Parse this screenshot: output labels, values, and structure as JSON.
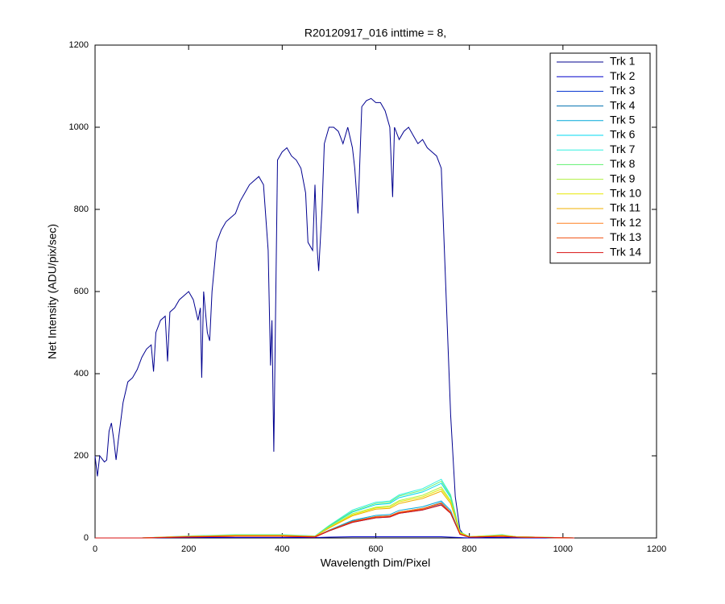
{
  "chart_data": {
    "type": "line",
    "title": "R20120917_016 inttime = 8,",
    "x_label": "Wavelength Dim/Pixel",
    "y_label": "Net Intensity (ADU/pix/sec)",
    "xlim": [
      0,
      1200
    ],
    "xticks": [
      0,
      200,
      400,
      600,
      800,
      1000,
      1200
    ],
    "ylim": [
      0,
      1200
    ],
    "yticks": [
      0,
      200,
      400,
      600,
      800,
      1000,
      1200
    ],
    "legend": "upper-right",
    "x": [
      0,
      100,
      200,
      300,
      400,
      470,
      500,
      550,
      600,
      630,
      650,
      700,
      740,
      760,
      780,
      800,
      870,
      900,
      1024
    ],
    "series": [
      {
        "name": "Trk 1",
        "color": "#00008f",
        "x": [
          0,
          5,
          10,
          20,
          25,
          30,
          35,
          40,
          45,
          50,
          60,
          70,
          80,
          90,
          100,
          110,
          120,
          125,
          130,
          140,
          150,
          155,
          160,
          170,
          180,
          190,
          200,
          210,
          220,
          225,
          228,
          232,
          240,
          245,
          250,
          260,
          270,
          280,
          290,
          300,
          310,
          320,
          330,
          340,
          350,
          360,
          370,
          375,
          378,
          382,
          390,
          400,
          410,
          420,
          430,
          440,
          450,
          455,
          465,
          470,
          475,
          478,
          485,
          490,
          500,
          510,
          520,
          530,
          540,
          550,
          555,
          562,
          570,
          580,
          590,
          600,
          610,
          620,
          630,
          636,
          640,
          650,
          660,
          670,
          680,
          690,
          700,
          710,
          720,
          730,
          740,
          750,
          760,
          770,
          780,
          790,
          800,
          850,
          900,
          1000,
          1024
        ],
        "values": [
          200,
          150,
          200,
          185,
          190,
          260,
          280,
          240,
          190,
          240,
          330,
          380,
          390,
          410,
          440,
          460,
          470,
          405,
          500,
          530,
          540,
          430,
          550,
          560,
          580,
          590,
          600,
          580,
          530,
          560,
          390,
          600,
          500,
          480,
          600,
          720,
          750,
          770,
          780,
          790,
          820,
          840,
          860,
          870,
          880,
          860,
          700,
          420,
          530,
          210,
          920,
          940,
          950,
          930,
          920,
          900,
          840,
          720,
          700,
          860,
          700,
          650,
          800,
          960,
          1000,
          1000,
          990,
          960,
          1000,
          950,
          900,
          790,
          1050,
          1065,
          1070,
          1060,
          1060,
          1040,
          1000,
          830,
          1000,
          970,
          990,
          1000,
          980,
          960,
          970,
          950,
          940,
          930,
          900,
          600,
          300,
          100,
          20,
          5,
          2,
          1,
          1,
          0,
          0
        ]
      },
      {
        "name": "Trk 2",
        "color": "#0000cc",
        "values": [
          0,
          0,
          1,
          1,
          1,
          1,
          2,
          3,
          3,
          3,
          3,
          3,
          3,
          2,
          1,
          0,
          1,
          0,
          0
        ]
      },
      {
        "name": "Trk 3",
        "color": "#0030d0",
        "values": [
          0,
          0,
          3,
          4,
          4,
          3,
          17,
          38,
          49,
          51,
          60,
          68,
          81,
          60,
          9,
          2,
          4,
          2,
          0
        ]
      },
      {
        "name": "Trk 4",
        "color": "#0070b0",
        "values": [
          0,
          0,
          3,
          5,
          5,
          3,
          18,
          41,
          52,
          54,
          63,
          72,
          86,
          63,
          9,
          2,
          5,
          2,
          0
        ]
      },
      {
        "name": "Trk 5",
        "color": "#00a8d8",
        "values": [
          0,
          0,
          3,
          5,
          5,
          3,
          19,
          43,
          55,
          57,
          67,
          76,
          90,
          67,
          10,
          2,
          5,
          2,
          0
        ]
      },
      {
        "name": "Trk 6",
        "color": "#00d8f0",
        "values": [
          0,
          0,
          4,
          7,
          7,
          4,
          28,
          63,
          81,
          84,
          98,
          112,
          133,
          98,
          14,
          3,
          7,
          3,
          0
        ]
      },
      {
        "name": "Trk 7",
        "color": "#30f0e0",
        "values": [
          0,
          0,
          5,
          8,
          8,
          5,
          30,
          68,
          87,
          90,
          105,
          120,
          143,
          105,
          15,
          3,
          8,
          3,
          0
        ]
      },
      {
        "name": "Trk 8",
        "color": "#60f070",
        "values": [
          0,
          0,
          4,
          7,
          7,
          4,
          29,
          65,
          84,
          87,
          102,
          116,
          138,
          102,
          15,
          3,
          7,
          3,
          0
        ]
      },
      {
        "name": "Trk 9",
        "color": "#b0f040",
        "values": [
          0,
          0,
          4,
          7,
          7,
          4,
          26,
          59,
          75,
          78,
          91,
          104,
          124,
          91,
          13,
          3,
          7,
          3,
          0
        ]
      },
      {
        "name": "Trk 10",
        "color": "#e8e800",
        "values": [
          0,
          0,
          4,
          6,
          6,
          4,
          25,
          56,
          73,
          75,
          88,
          100,
          119,
          88,
          13,
          3,
          6,
          3,
          0
        ]
      },
      {
        "name": "Trk 11",
        "color": "#f0b000",
        "values": [
          0,
          0,
          4,
          6,
          6,
          4,
          24,
          54,
          70,
          72,
          84,
          96,
          114,
          84,
          12,
          2,
          6,
          2,
          0
        ]
      },
      {
        "name": "Trk 12",
        "color": "#ff8020",
        "values": [
          0,
          0,
          3,
          4,
          4,
          3,
          18,
          40,
          52,
          54,
          63,
          72,
          85,
          63,
          9,
          2,
          4,
          2,
          0
        ]
      },
      {
        "name": "Trk 13",
        "color": "#f05010",
        "values": [
          0,
          0,
          3,
          4,
          4,
          3,
          18,
          40,
          51,
          53,
          62,
          70,
          84,
          62,
          9,
          2,
          4,
          2,
          0
        ]
      },
      {
        "name": "Trk 14",
        "color": "#d81010",
        "values": [
          0,
          0,
          2,
          4,
          4,
          2,
          17,
          38,
          49,
          51,
          60,
          68,
          80,
          60,
          9,
          2,
          4,
          2,
          0
        ]
      }
    ]
  }
}
